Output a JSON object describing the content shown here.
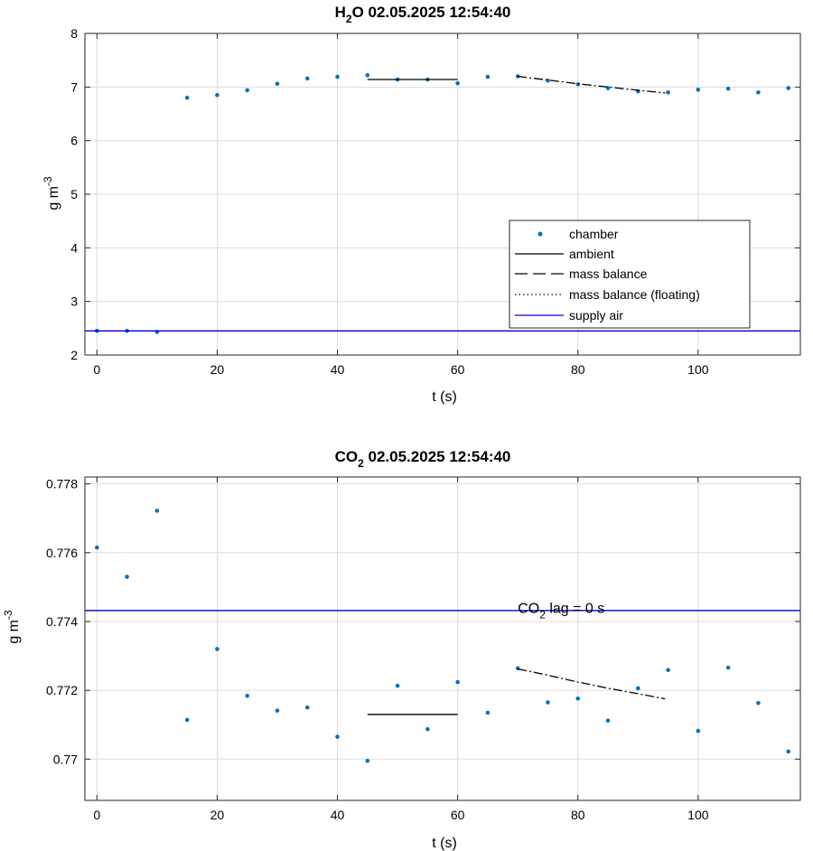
{
  "colors": {
    "chamber": "#0072BD",
    "ambient": "#000000",
    "mass_balance": "#000000",
    "supply_air": "#0000CC",
    "grid": "#DCDCDC"
  },
  "chart_data": [
    {
      "type": "scatter",
      "title": {
        "main": "H",
        "sub": "2",
        "rest": "O  02.05.2025 12:54:40"
      },
      "xlabel": "t (s)",
      "ylabel": {
        "main": "g m",
        "sup": "-3"
      },
      "xlim": [
        -2,
        117
      ],
      "ylim": [
        2,
        8
      ],
      "xticks": [
        0,
        20,
        40,
        60,
        80,
        100
      ],
      "yticks": [
        2,
        3,
        4,
        5,
        6,
        7,
        8
      ],
      "grid": true,
      "legend": {
        "position": "right-middle",
        "items": [
          {
            "key": "chamber",
            "label": "chamber"
          },
          {
            "key": "ambient",
            "label": "ambient"
          },
          {
            "key": "mass_balance",
            "label": "mass balance"
          },
          {
            "key": "mass_balance_floating",
            "label": "mass balance (floating)"
          },
          {
            "key": "supply_air",
            "label": "supply air"
          }
        ]
      },
      "series": [
        {
          "name": "chamber",
          "style": "dots",
          "x": [
            0,
            5,
            10,
            15,
            20,
            25,
            30,
            35,
            40,
            45,
            50,
            55,
            60,
            65,
            70,
            75,
            80,
            85,
            90,
            95,
            100,
            105,
            110,
            115
          ],
          "y": [
            2.45,
            2.45,
            2.43,
            6.8,
            6.85,
            6.94,
            7.06,
            7.16,
            7.19,
            7.22,
            7.14,
            7.14,
            7.07,
            7.19,
            7.2,
            7.12,
            7.05,
            6.98,
            6.92,
            6.9,
            6.95,
            6.97,
            6.9,
            6.98
          ]
        },
        {
          "name": "ambient",
          "style": "solid",
          "x": [
            45,
            60
          ],
          "y": [
            7.14,
            7.14
          ]
        },
        {
          "name": "mass balance",
          "style": "dashdot",
          "x": [
            70,
            75,
            80,
            85,
            90,
            94.5
          ],
          "y": [
            7.2,
            7.13,
            7.06,
            7.0,
            6.94,
            6.89
          ]
        },
        {
          "name": "supply air",
          "style": "blue",
          "x": [
            -2,
            117
          ],
          "y": [
            2.45,
            2.45
          ]
        }
      ]
    },
    {
      "type": "scatter",
      "title": {
        "main": "CO",
        "sub": "2",
        "rest": "  02.05.2025 12:54:40"
      },
      "xlabel": "t (s)",
      "ylabel": {
        "main": "g m",
        "sup": "-3"
      },
      "xlim": [
        -2,
        117
      ],
      "ylim": [
        0.7688,
        0.7782
      ],
      "xticks": [
        0,
        20,
        40,
        60,
        80,
        100
      ],
      "yticks": [
        0.77,
        0.772,
        0.774,
        0.776,
        0.778
      ],
      "ytick_labels": [
        "0.77",
        "0.772",
        "0.774",
        "0.776",
        "0.778"
      ],
      "grid": true,
      "annotation": {
        "main": "CO",
        "sub": "2",
        "rest": " lag = 0 s",
        "x": 70,
        "y": 0.7744
      },
      "series": [
        {
          "name": "chamber",
          "style": "dots",
          "x": [
            0,
            5,
            10,
            15,
            20,
            25,
            30,
            35,
            40,
            45,
            50,
            55,
            60,
            65,
            70,
            75,
            80,
            85,
            90,
            95,
            100,
            105,
            110,
            115
          ],
          "y": [
            0.77615,
            0.7753,
            0.77722,
            0.77114,
            0.7732,
            0.77184,
            0.77141,
            0.7715,
            0.77065,
            0.76995,
            0.77213,
            0.77087,
            0.77224,
            0.77135,
            0.77264,
            0.77165,
            0.77176,
            0.77112,
            0.77206,
            0.77259,
            0.77082,
            0.77266,
            0.77163,
            0.77022
          ]
        },
        {
          "name": "ambient",
          "style": "solid",
          "x": [
            45,
            60
          ],
          "y": [
            0.7713,
            0.7713
          ]
        },
        {
          "name": "mass balance",
          "style": "dashdot",
          "x": [
            70,
            75,
            80,
            85,
            90,
            94.5
          ],
          "y": [
            0.77262,
            0.77244,
            0.77224,
            0.77206,
            0.7719,
            0.77175
          ]
        },
        {
          "name": "supply air",
          "style": "blue",
          "x": [
            -2,
            117
          ],
          "y": [
            0.77432,
            0.77432
          ]
        }
      ]
    }
  ]
}
